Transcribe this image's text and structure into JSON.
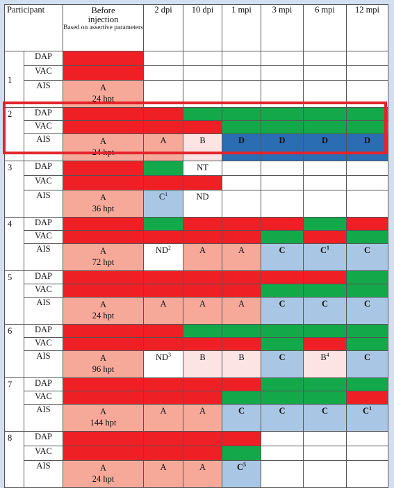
{
  "headers": {
    "participant": "Participant",
    "before_line1": "Before",
    "before_line2": "injection",
    "before_note": "Based on assertive parameters",
    "cols": [
      "2 dpi",
      "10 dpi",
      "1 mpi",
      "3 mpi",
      "6 mpi",
      "12 mpi"
    ]
  },
  "row_labels": [
    "DAP",
    "VAC",
    "AIS"
  ],
  "participants": [
    {
      "id": "1",
      "dap": [
        "red",
        "",
        "",
        "",
        "",
        "",
        ""
      ],
      "vac": [
        "red",
        "",
        "",
        "",
        "",
        "",
        ""
      ],
      "ais": {
        "before_grade": "A",
        "before_time": "24 hpt",
        "cells": [
          {
            "t": "",
            "c": "white"
          },
          {
            "t": "",
            "c": "white"
          },
          {
            "t": "",
            "c": "white"
          },
          {
            "t": "",
            "c": "white"
          },
          {
            "t": "",
            "c": "white"
          },
          {
            "t": "",
            "c": "white"
          }
        ]
      }
    },
    {
      "id": "2",
      "dap": [
        "red",
        "red",
        "green",
        "green",
        "green",
        "green",
        "green"
      ],
      "vac": [
        "red",
        "red",
        "red",
        "green",
        "green",
        "green",
        "green"
      ],
      "ais": {
        "before_grade": "A",
        "before_time": "24 hpt",
        "cells": [
          {
            "t": "A",
            "c": "pink"
          },
          {
            "t": "B",
            "c": "lightpink"
          },
          {
            "t": "D",
            "c": "blue",
            "b": true
          },
          {
            "t": "D",
            "c": "blue",
            "b": true
          },
          {
            "t": "D",
            "c": "blue",
            "b": true
          },
          {
            "t": "D",
            "c": "blue",
            "b": true
          }
        ]
      }
    },
    {
      "id": "3",
      "dap": [
        "red",
        "green",
        "NT",
        "",
        "",
        "",
        ""
      ],
      "vac": [
        "red",
        "red",
        "red",
        "",
        "",
        "",
        ""
      ],
      "ais": {
        "before_grade": "A",
        "before_time": "36 hpt",
        "cells": [
          {
            "t": "C",
            "sup": "1",
            "c": "lightblue"
          },
          {
            "t": "ND",
            "c": "white"
          },
          {
            "t": "",
            "c": "white"
          },
          {
            "t": "",
            "c": "white"
          },
          {
            "t": "",
            "c": "white"
          },
          {
            "t": "",
            "c": "white"
          }
        ]
      }
    },
    {
      "id": "4",
      "dap": [
        "red",
        "green",
        "red",
        "red",
        "red",
        "green",
        "red"
      ],
      "vac": [
        "red",
        "red",
        "red",
        "red",
        "green",
        "red",
        "green"
      ],
      "ais": {
        "before_grade": "A",
        "before_time": "72 hpt",
        "cells": [
          {
            "t": "ND",
            "sup": "2",
            "c": "white"
          },
          {
            "t": "A",
            "c": "pink"
          },
          {
            "t": "A",
            "c": "pink"
          },
          {
            "t": "C",
            "c": "lightblue",
            "b": true
          },
          {
            "t": "C",
            "sup": "1",
            "c": "lightblue",
            "b": true
          },
          {
            "t": "C",
            "c": "lightblue",
            "b": true
          }
        ]
      }
    },
    {
      "id": "5",
      "dap": [
        "red",
        "red",
        "red",
        "red",
        "red",
        "red",
        "green"
      ],
      "vac": [
        "red",
        "red",
        "red",
        "red",
        "green",
        "green",
        "green"
      ],
      "ais": {
        "before_grade": "A",
        "before_time": "24 hpt",
        "cells": [
          {
            "t": "A",
            "c": "pink"
          },
          {
            "t": "A",
            "c": "pink"
          },
          {
            "t": "A",
            "c": "pink"
          },
          {
            "t": "C",
            "c": "lightblue",
            "b": true
          },
          {
            "t": "C",
            "c": "lightblue",
            "b": true
          },
          {
            "t": "C",
            "c": "lightblue",
            "b": true
          }
        ]
      }
    },
    {
      "id": "6",
      "dap": [
        "red",
        "red",
        "green",
        "green",
        "green",
        "green",
        "green"
      ],
      "vac": [
        "red",
        "red",
        "red",
        "red",
        "green",
        "red",
        "green"
      ],
      "ais": {
        "before_grade": "A",
        "before_time": "96 hpt",
        "cells": [
          {
            "t": "ND",
            "sup": "3",
            "c": "white"
          },
          {
            "t": "B",
            "c": "lightpink"
          },
          {
            "t": "B",
            "c": "lightpink"
          },
          {
            "t": "C",
            "c": "lightblue",
            "b": true
          },
          {
            "t": "B",
            "sup": "4",
            "c": "lightpink"
          },
          {
            "t": "C",
            "c": "lightblue",
            "b": true
          }
        ]
      }
    },
    {
      "id": "7",
      "dap": [
        "red",
        "red",
        "red",
        "red",
        "green",
        "green",
        "green"
      ],
      "vac": [
        "red",
        "red",
        "red",
        "green",
        "green",
        "green",
        "red"
      ],
      "ais": {
        "before_grade": "A",
        "before_time": "144 hpt",
        "cells": [
          {
            "t": "A",
            "c": "pink"
          },
          {
            "t": "A",
            "c": "pink"
          },
          {
            "t": "C",
            "c": "lightblue",
            "b": true
          },
          {
            "t": "C",
            "c": "lightblue",
            "b": true
          },
          {
            "t": "C",
            "c": "lightblue",
            "b": true
          },
          {
            "t": "C",
            "sup": "1",
            "c": "lightblue",
            "b": true
          }
        ]
      }
    },
    {
      "id": "8",
      "dap": [
        "red",
        "red",
        "red",
        "red",
        "",
        "",
        ""
      ],
      "vac": [
        "red",
        "red",
        "red",
        "green",
        "",
        "",
        ""
      ],
      "ais": {
        "before_grade": "A",
        "before_time": "24 hpt",
        "cells": [
          {
            "t": "A",
            "c": "pink"
          },
          {
            "t": "A",
            "c": "pink"
          },
          {
            "t": "C",
            "sup": "5",
            "c": "lightblue",
            "b": true
          },
          {
            "t": "",
            "c": "white"
          },
          {
            "t": "",
            "c": "white"
          },
          {
            "t": "",
            "c": "white"
          }
        ]
      }
    }
  ],
  "highlight": {
    "participant": "2",
    "color": "#e3242b"
  }
}
